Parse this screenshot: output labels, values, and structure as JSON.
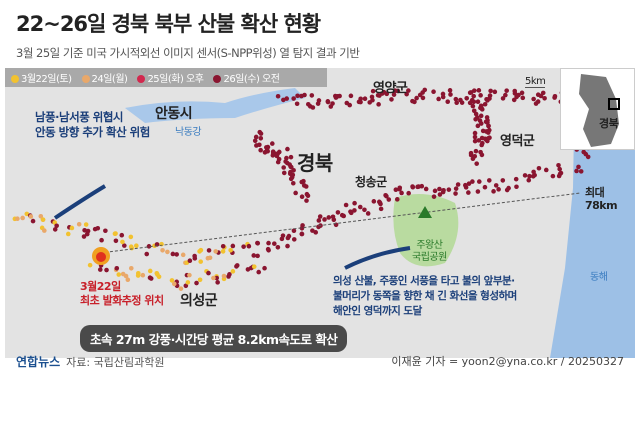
{
  "title": "22~26일 경북 북부 산불 확산 현황",
  "subtitle": "3월 25일 기준 미국 가시적외선 이미지 센서(S-NPP위성) 열 탐지 결과 기반",
  "legend": [
    {
      "label": "3월22일(토)",
      "color": "#f2c230"
    },
    {
      "label": "24일(월)",
      "color": "#e9a86a"
    },
    {
      "label": "25일(화) 오후",
      "color": "#d2284e"
    },
    {
      "label": "26일(수) 오전",
      "color": "#8a1530"
    }
  ],
  "scale": "5km",
  "places": {
    "yeongyang": "영양군",
    "andong": "안동시",
    "river": "낙동강",
    "gyeongbuk": "경북",
    "cheongsong": "청송군",
    "yeongdeok": "영덕군",
    "uiseong": "의성군",
    "east_sea": "동해",
    "park": "주왕산\n국립공원"
  },
  "inset_label": "경북",
  "annotations": {
    "andong_warning": "남풍·남서풍 위협시\n안동 방향 추가 확산 위험",
    "max_distance": "최대\n78km",
    "origin": "3월22일\n최초 발화추정 위치",
    "spread_note": "의성 산불, 주풍인 서풍을 타고 불의 앞부분·\n불머리가 동쪽을 향한 채 긴 화선을 형성하며\n해안인 영덕까지 도달",
    "speed": "초속 27m 강풍·시간당 평균 8.2km속도로 확산"
  },
  "footer": {
    "logo": "연합뉴스",
    "source": "자료: 국립산림과학원",
    "credit": "이재윤 기자 = yoon2@yna.co.kr / 20250327"
  },
  "colors": {
    "land": "#e3e3e3",
    "sea": "#9dc0e6",
    "river": "#a9c8ea",
    "park": "#b9dba0",
    "fire_dark": "#8a1530"
  }
}
